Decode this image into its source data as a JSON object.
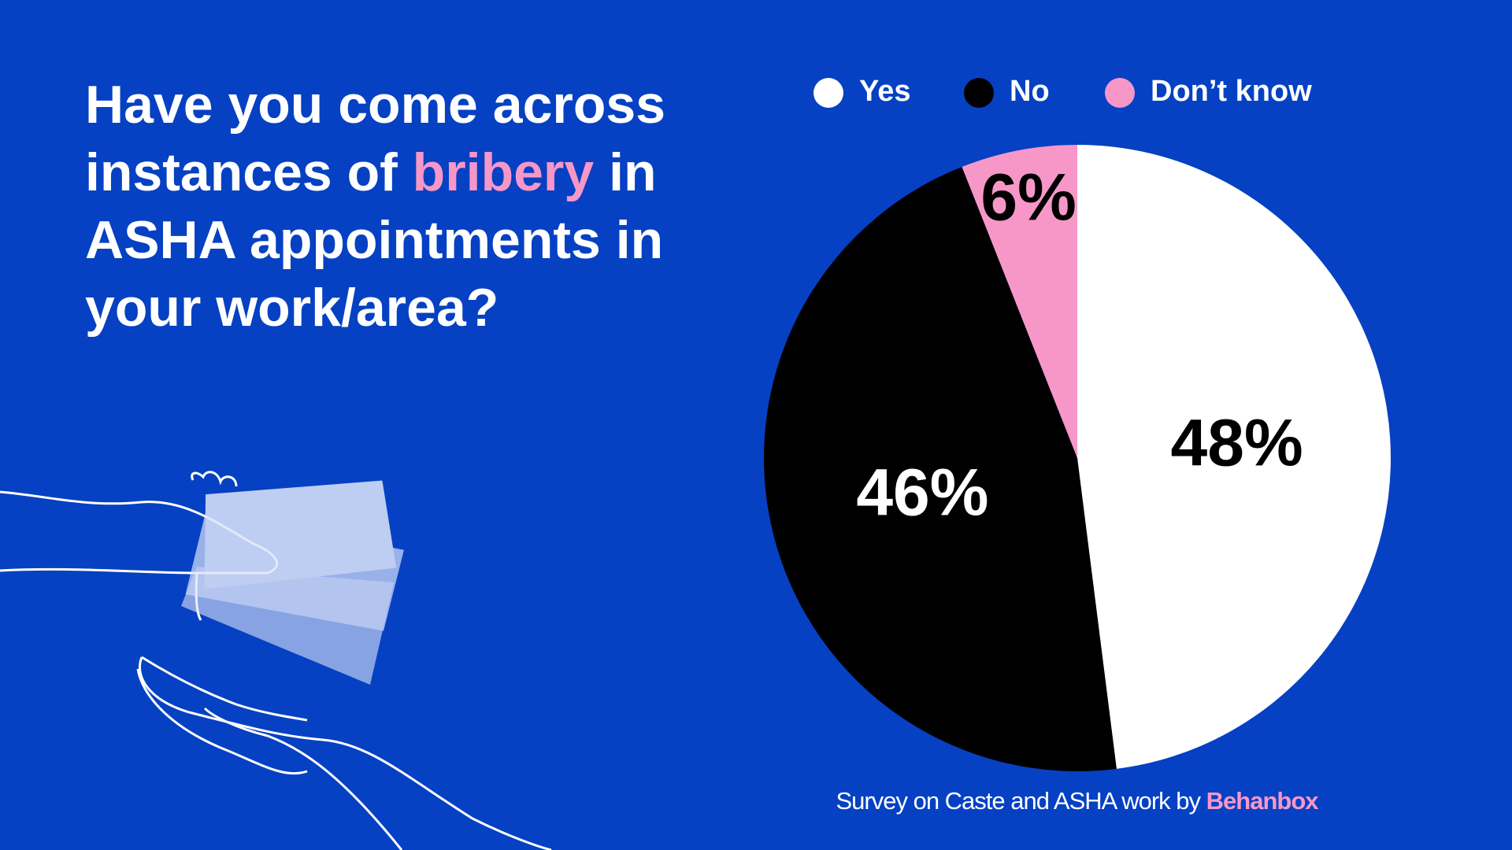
{
  "chart_data": {
    "type": "pie",
    "title_parts": [
      "Have you come across instances of ",
      "bribery",
      " in ASHA appointments in your work/area?"
    ],
    "categories": [
      "Yes",
      "No",
      "Don’t know"
    ],
    "values": [
      48,
      46,
      6
    ],
    "value_labels": [
      "48%",
      "46%",
      "6%"
    ],
    "colors": [
      "#ffffff",
      "#000000",
      "#f797c8"
    ],
    "source_parts": [
      "Survey on Caste and ASHA work by ",
      "Behanbox"
    ]
  }
}
